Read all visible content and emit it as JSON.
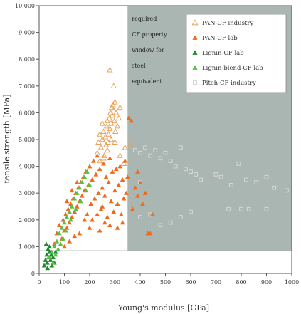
{
  "chart_data": {
    "type": "scatter",
    "title": "",
    "xlabel": "Young's modulus [GPa]",
    "ylabel": "tensile strength [MPa]",
    "xlim": [
      0,
      1000
    ],
    "ylim": [
      0,
      10000
    ],
    "x_ticks": [
      "0",
      "100",
      "200",
      "300",
      "400",
      "500",
      "600",
      "700",
      "800",
      "900",
      "1000"
    ],
    "y_ticks": [
      "0",
      "1.000",
      "2.000",
      "3.000",
      "4.000",
      "5.000",
      "6.000",
      "7.000",
      "8.000",
      "9.000",
      "10.000"
    ],
    "grid": false,
    "legend_position": "top-right",
    "annotation": {
      "lines": [
        "required",
        "CF property",
        "window for",
        "steel",
        "equivalent"
      ],
      "region": {
        "x_min": 350,
        "x_max": 1000,
        "y_min": 850,
        "y_max": 10000
      },
      "color": "#aab6b2"
    },
    "series": [
      {
        "name": "PAN-CF industry",
        "marker": "triangle-open",
        "color": "#e9a25a",
        "points": [
          [
            230,
            4500
          ],
          [
            235,
            4900
          ],
          [
            240,
            5200
          ],
          [
            245,
            4700
          ],
          [
            250,
            5000
          ],
          [
            255,
            5300
          ],
          [
            258,
            4400
          ],
          [
            262,
            5100
          ],
          [
            265,
            4800
          ],
          [
            268,
            5500
          ],
          [
            270,
            5700
          ],
          [
            272,
            4900
          ],
          [
            275,
            5200
          ],
          [
            278,
            5800
          ],
          [
            280,
            5400
          ],
          [
            282,
            6000
          ],
          [
            285,
            5600
          ],
          [
            288,
            6200
          ],
          [
            290,
            5900
          ],
          [
            292,
            6300
          ],
          [
            295,
            6100
          ],
          [
            298,
            5700
          ],
          [
            300,
            6400
          ],
          [
            302,
            5300
          ],
          [
            305,
            6000
          ],
          [
            310,
            5500
          ],
          [
            315,
            5800
          ],
          [
            295,
            7000
          ],
          [
            280,
            7600
          ],
          [
            270,
            4600
          ],
          [
            250,
            5600
          ],
          [
            240,
            4200
          ],
          [
            320,
            6200
          ],
          [
            255,
            4300
          ],
          [
            285,
            5000
          ],
          [
            300,
            4900
          ],
          [
            340,
            4700
          ],
          [
            360,
            4800
          ],
          [
            320,
            4400
          ],
          [
            335,
            4100
          ]
        ]
      },
      {
        "name": "PAN-CF lab",
        "marker": "triangle-filled",
        "color": "#f06a1a",
        "points": [
          [
            60,
            1100
          ],
          [
            70,
            1500
          ],
          [
            80,
            1800
          ],
          [
            90,
            1300
          ],
          [
            95,
            2000
          ],
          [
            100,
            1600
          ],
          [
            105,
            2200
          ],
          [
            110,
            1700
          ],
          [
            115,
            2400
          ],
          [
            120,
            1900
          ],
          [
            125,
            2600
          ],
          [
            130,
            2100
          ],
          [
            135,
            2800
          ],
          [
            140,
            2300
          ],
          [
            145,
            3000
          ],
          [
            150,
            2500
          ],
          [
            155,
            3200
          ],
          [
            160,
            2700
          ],
          [
            165,
            3400
          ],
          [
            170,
            2900
          ],
          [
            175,
            3600
          ],
          [
            180,
            3100
          ],
          [
            185,
            3800
          ],
          [
            190,
            2200
          ],
          [
            195,
            3300
          ],
          [
            200,
            4000
          ],
          [
            205,
            2600
          ],
          [
            210,
            3500
          ],
          [
            215,
            4200
          ],
          [
            220,
            2800
          ],
          [
            225,
            3700
          ],
          [
            230,
            4400
          ],
          [
            235,
            3000
          ],
          [
            240,
            3900
          ],
          [
            245,
            2400
          ],
          [
            250,
            3200
          ],
          [
            255,
            4100
          ],
          [
            260,
            2900
          ],
          [
            265,
            3600
          ],
          [
            270,
            2100
          ],
          [
            275,
            3400
          ],
          [
            280,
            4300
          ],
          [
            285,
            2700
          ],
          [
            290,
            3800
          ],
          [
            295,
            2300
          ],
          [
            300,
            3100
          ],
          [
            305,
            3900
          ],
          [
            310,
            2600
          ],
          [
            315,
            3300
          ],
          [
            320,
            4000
          ],
          [
            325,
            2200
          ],
          [
            330,
            3500
          ],
          [
            335,
            2800
          ],
          [
            340,
            4200
          ],
          [
            345,
            3000
          ],
          [
            350,
            3600
          ],
          [
            355,
            5800
          ],
          [
            365,
            5700
          ],
          [
            380,
            3200
          ],
          [
            390,
            2900
          ],
          [
            400,
            3400
          ],
          [
            410,
            2600
          ],
          [
            420,
            3000
          ],
          [
            430,
            1500
          ],
          [
            440,
            1500
          ],
          [
            450,
            2200
          ],
          [
            200,
            1700
          ],
          [
            180,
            2000
          ],
          [
            160,
            1500
          ],
          [
            150,
            3400
          ],
          [
            260,
            1900
          ],
          [
            240,
            1600
          ],
          [
            280,
            1800
          ],
          [
            310,
            1700
          ],
          [
            330,
            1900
          ],
          [
            370,
            2400
          ],
          [
            390,
            3800
          ],
          [
            120,
            1200
          ],
          [
            140,
            1400
          ],
          [
            100,
            1000
          ],
          [
            110,
            2700
          ],
          [
            130,
            3100
          ],
          [
            210,
            2000
          ],
          [
            230,
            2200
          ],
          [
            250,
            2500
          ]
        ]
      },
      {
        "name": "Lignin-CF lab",
        "marker": "triangle-filled",
        "color": "#1f8a2e",
        "points": [
          [
            20,
            300
          ],
          [
            25,
            500
          ],
          [
            30,
            700
          ],
          [
            32,
            400
          ],
          [
            35,
            900
          ],
          [
            38,
            600
          ],
          [
            40,
            1000
          ],
          [
            42,
            800
          ],
          [
            45,
            500
          ],
          [
            48,
            700
          ],
          [
            50,
            300
          ],
          [
            55,
            600
          ],
          [
            28,
            1100
          ],
          [
            33,
            200
          ],
          [
            60,
            400
          ],
          [
            65,
            800
          ]
        ]
      },
      {
        "name": "Lignin-blend-CF lab",
        "marker": "triangle-filled",
        "color": "#58c04a",
        "points": [
          [
            40,
            600
          ],
          [
            50,
            800
          ],
          [
            60,
            1000
          ],
          [
            70,
            1200
          ],
          [
            80,
            1500
          ],
          [
            90,
            1700
          ],
          [
            100,
            1900
          ],
          [
            110,
            2100
          ],
          [
            120,
            2300
          ],
          [
            130,
            2500
          ],
          [
            140,
            2800
          ],
          [
            150,
            3000
          ],
          [
            160,
            3200
          ],
          [
            170,
            3400
          ],
          [
            180,
            3600
          ],
          [
            190,
            3800
          ],
          [
            75,
            900
          ],
          [
            85,
            1100
          ],
          [
            95,
            1300
          ],
          [
            105,
            1600
          ],
          [
            125,
            2000
          ],
          [
            145,
            2400
          ],
          [
            165,
            2700
          ],
          [
            185,
            3100
          ],
          [
            200,
            3300
          ],
          [
            55,
            400
          ],
          [
            65,
            700
          ]
        ]
      },
      {
        "name": "Pitch-CF industry",
        "marker": "square-open",
        "color": "#d8d8d8",
        "points": [
          [
            380,
            4600
          ],
          [
            400,
            4500
          ],
          [
            420,
            4700
          ],
          [
            440,
            4400
          ],
          [
            460,
            4600
          ],
          [
            480,
            4300
          ],
          [
            500,
            4500
          ],
          [
            520,
            4200
          ],
          [
            540,
            4000
          ],
          [
            560,
            4700
          ],
          [
            580,
            3900
          ],
          [
            600,
            3800
          ],
          [
            620,
            3700
          ],
          [
            640,
            3500
          ],
          [
            700,
            3700
          ],
          [
            720,
            3600
          ],
          [
            760,
            3300
          ],
          [
            790,
            4100
          ],
          [
            820,
            3500
          ],
          [
            860,
            3400
          ],
          [
            900,
            3600
          ],
          [
            930,
            3200
          ],
          [
            980,
            3100
          ],
          [
            400,
            2100
          ],
          [
            440,
            2200
          ],
          [
            480,
            1800
          ],
          [
            520,
            1900
          ],
          [
            560,
            2100
          ],
          [
            600,
            2300
          ],
          [
            750,
            2400
          ],
          [
            800,
            2400
          ],
          [
            830,
            2400
          ],
          [
            900,
            2400
          ],
          [
            400,
            3400
          ]
        ]
      }
    ]
  }
}
